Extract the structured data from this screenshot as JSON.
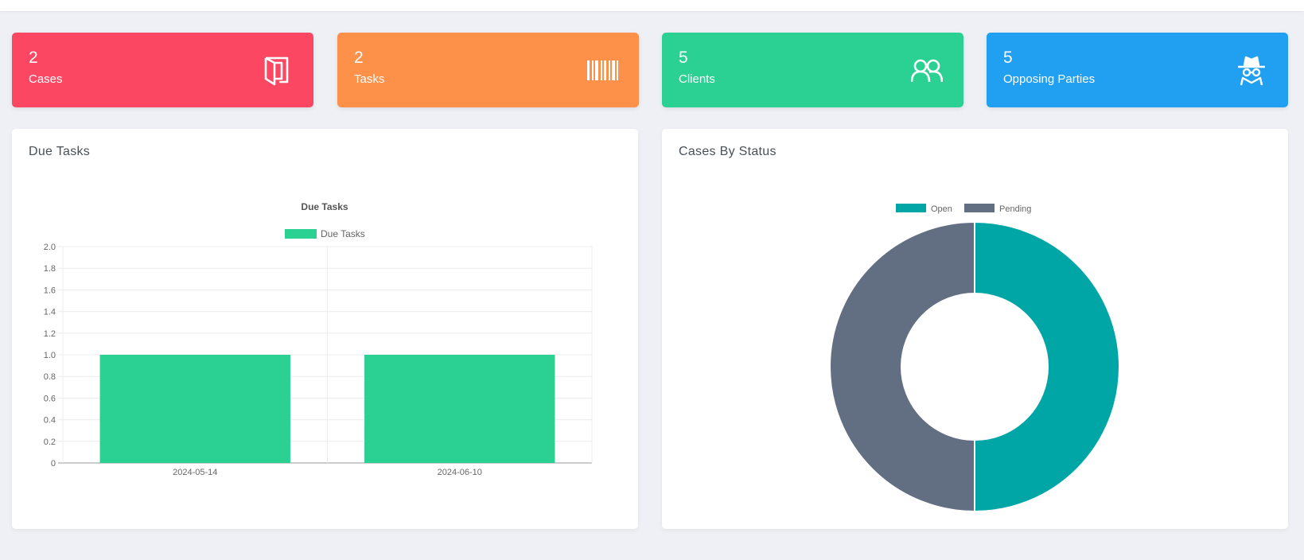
{
  "stats": [
    {
      "value": "2",
      "label": "Cases",
      "color": "#fb4762",
      "icon": "door-icon"
    },
    {
      "value": "2",
      "label": "Tasks",
      "color": "#fd9149",
      "icon": "barcode-icon"
    },
    {
      "value": "5",
      "label": "Clients",
      "color": "#2bd192",
      "icon": "users-icon"
    },
    {
      "value": "5",
      "label": "Opposing Parties",
      "color": "#21a0f1",
      "icon": "spy-icon"
    }
  ],
  "due_tasks_panel": {
    "title": "Due Tasks"
  },
  "status_panel": {
    "title": "Cases By Status"
  },
  "chart_data": [
    {
      "type": "bar",
      "title": "Due Tasks",
      "categories": [
        "2024-05-14",
        "2024-06-10"
      ],
      "series": [
        {
          "name": "Due Tasks",
          "values": [
            1,
            1
          ],
          "color": "#2bd192"
        }
      ],
      "ylim": [
        0,
        2.0
      ],
      "yticks": [
        "0",
        "0.2",
        "0.4",
        "0.6",
        "0.8",
        "1.0",
        "1.2",
        "1.4",
        "1.6",
        "1.8",
        "2.0"
      ],
      "grid": true,
      "legend": "top"
    },
    {
      "type": "pie",
      "style": "doughnut",
      "labels": [
        "Open",
        "Pending"
      ],
      "values": [
        1,
        1
      ],
      "colors": [
        "#00a6a6",
        "#626e81"
      ],
      "legend": "top"
    }
  ]
}
